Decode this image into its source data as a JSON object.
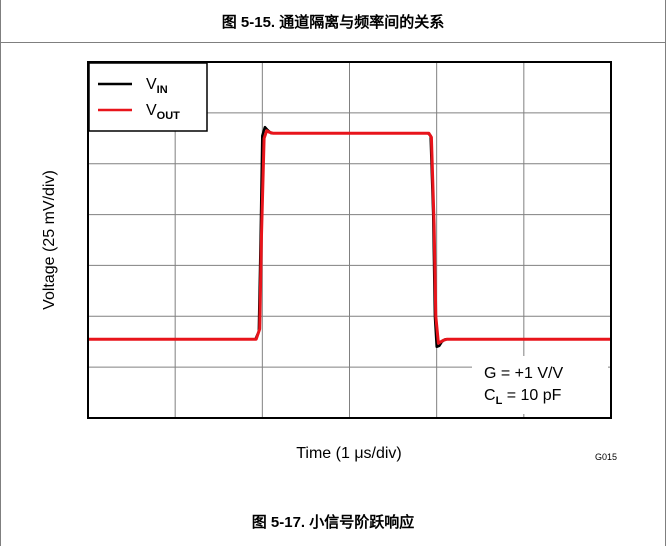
{
  "captions": {
    "top": "图 5-15. 通道隔离与频率间的关系",
    "bottom": "图 5-17. 小信号阶跃响应"
  },
  "chart_data": {
    "type": "line",
    "xlabel": "Time (1 μs/div)",
    "ylabel": "Voltage (25 mV/div)",
    "figure_code": "G015",
    "xlim": [
      0,
      6
    ],
    "ylim": [
      0,
      7
    ],
    "grid": true,
    "legend_position": "top-left",
    "legend": [
      {
        "main": "V",
        "sub": "IN",
        "color": "#000000"
      },
      {
        "main": "V",
        "sub": "OUT",
        "color": "#e8141b"
      }
    ],
    "annotations": [
      {
        "main": "G = +1 V/V",
        "sub": ""
      },
      {
        "main": "C",
        "sub": "L",
        "rest": " = 10 pF"
      }
    ],
    "series": [
      {
        "name": "VIN",
        "color": "#000000",
        "x": [
          0,
          1.92,
          1.96,
          1.98,
          2.0,
          2.03,
          2.06,
          2.1,
          3.9,
          3.93,
          3.96,
          3.98,
          4.0,
          4.03,
          4.06,
          4.1,
          6.0
        ],
        "y": [
          1.55,
          1.55,
          1.7,
          3.5,
          5.55,
          5.72,
          5.66,
          5.6,
          5.6,
          5.55,
          4.0,
          2.0,
          1.4,
          1.42,
          1.5,
          1.55,
          1.55
        ]
      },
      {
        "name": "VOUT",
        "color": "#e8141b",
        "x": [
          0,
          1.93,
          1.97,
          1.99,
          2.02,
          2.05,
          2.08,
          2.12,
          3.91,
          3.94,
          3.97,
          3.99,
          4.02,
          4.05,
          4.08,
          4.12,
          6.0
        ],
        "y": [
          1.55,
          1.55,
          1.75,
          3.6,
          5.5,
          5.65,
          5.62,
          5.6,
          5.6,
          5.52,
          3.8,
          2.0,
          1.47,
          1.5,
          1.53,
          1.55,
          1.55
        ]
      }
    ]
  }
}
